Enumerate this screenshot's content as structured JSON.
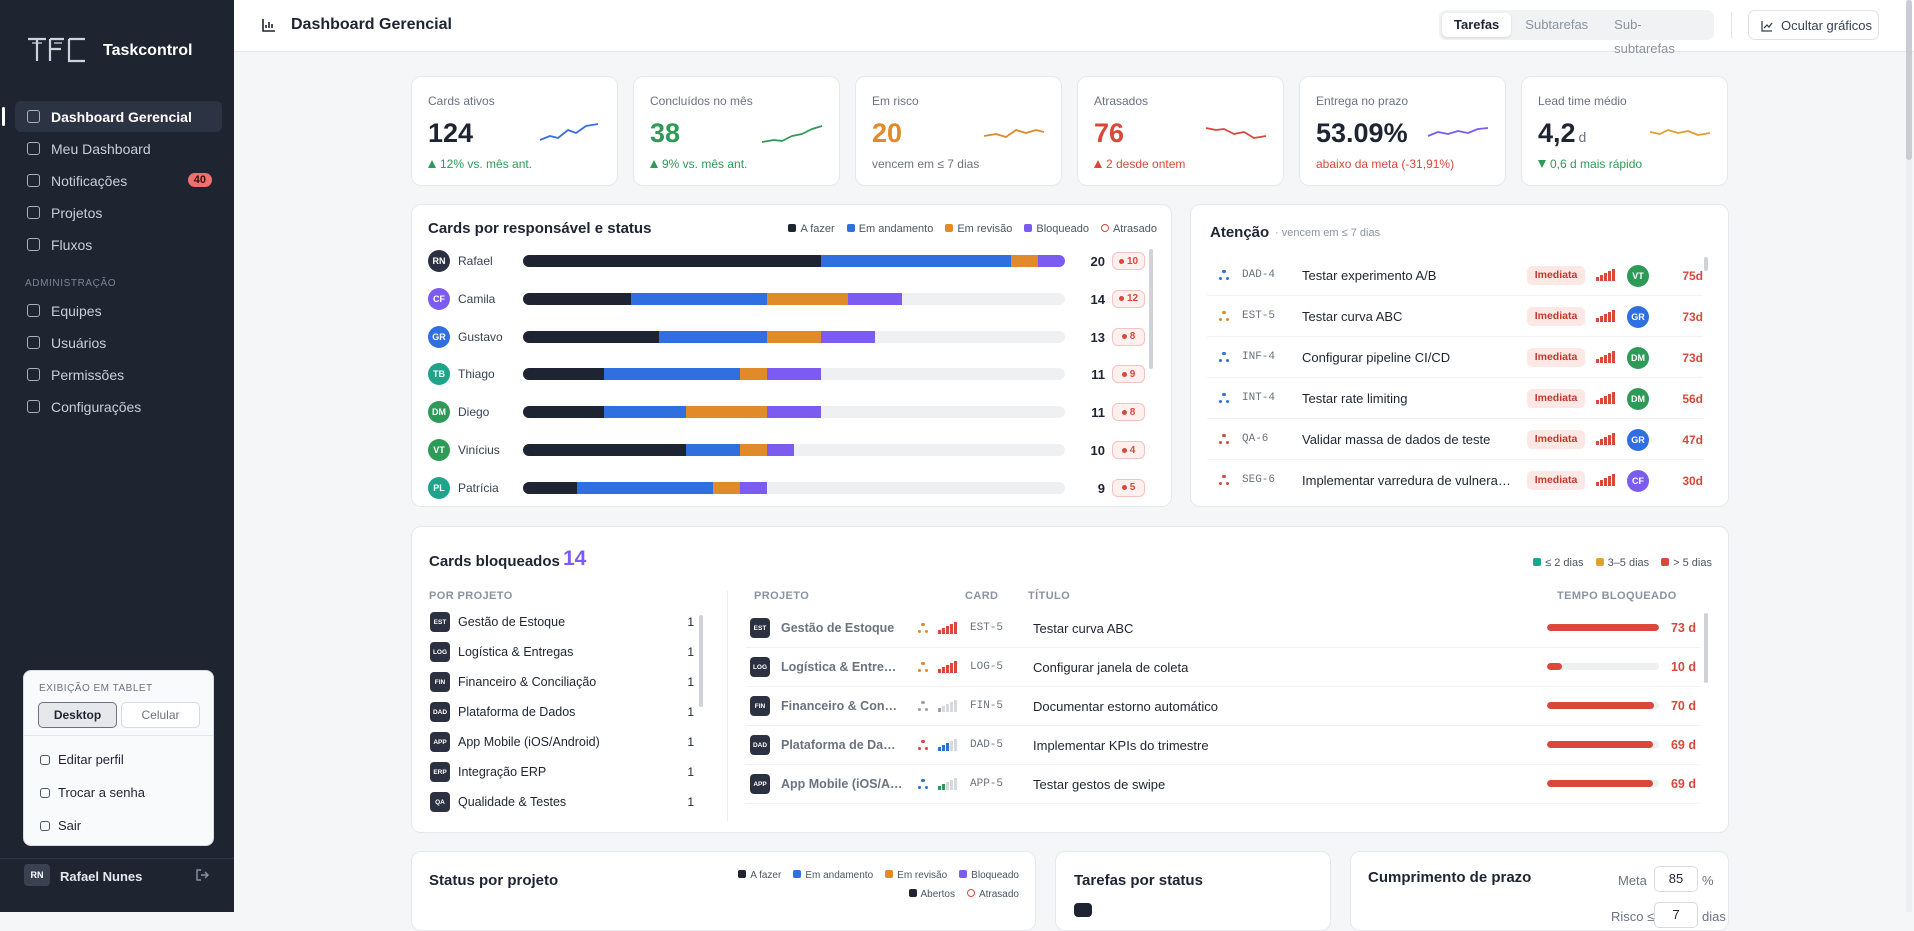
{
  "sidebar": {
    "brand": "Taskcontrol",
    "nav": [
      {
        "label": "Dashboard Gerencial",
        "active": true
      },
      {
        "label": "Meu Dashboard"
      },
      {
        "label": "Notificações",
        "badge": 40
      },
      {
        "label": "Projetos"
      },
      {
        "label": "Fluxos"
      }
    ],
    "admin_title": "ADMINISTRAÇÃO",
    "admin_nav": [
      {
        "label": "Equipes"
      },
      {
        "label": "Usuários"
      },
      {
        "label": "Permissões"
      },
      {
        "label": "Configurações"
      }
    ],
    "tablet": {
      "title": "EXIBIÇÃO EM TABLET",
      "options": [
        {
          "label": "Desktop",
          "active": true
        },
        {
          "label": "Celular"
        }
      ],
      "actions": [
        "Editar perfil",
        "Trocar a senha",
        "Sair"
      ]
    },
    "user": {
      "initials": "RN",
      "name": "Rafael Nunes"
    }
  },
  "header": {
    "title": "Dashboard Gerencial",
    "tabs": [
      {
        "label": "Tarefas",
        "active": true
      },
      {
        "label": "Subtarefas"
      },
      {
        "label": "Sub-subtarefas"
      }
    ],
    "button": "Ocultar gráficos"
  },
  "kpis": [
    {
      "label": "Cards ativos",
      "value": 124,
      "value_color": "#1f2433",
      "note": "12% vs. mês ant.",
      "trend": "up",
      "note_color": "#2e9a57",
      "spark_color": "#3a6fe0"
    },
    {
      "label": "Concluídos no mês",
      "value": 38,
      "value_color": "#2e9a57",
      "note": "9% vs. mês ant.",
      "trend": "up",
      "note_color": "#2e9a57",
      "spark_color": "#2e9a57"
    },
    {
      "label": "Em risco",
      "value": 20,
      "value_color": "#e08a2a",
      "note": "vencem em ≤ 7 dias",
      "note_color": "#6b7280",
      "spark_color": "#e08a2a"
    },
    {
      "label": "Atrasados",
      "value": 76,
      "value_color": "#d9483b",
      "note": "2 desde ontem",
      "trend": "up",
      "note_color": "#d9483b",
      "spark_color": "#d9483b"
    },
    {
      "label": "Entrega no prazo",
      "value": "53.09%",
      "value_color": "#1f2433",
      "note": "abaixo da meta (-31,91%)",
      "note_color": "#d9483b",
      "spark_color": "#7c5cf0"
    },
    {
      "label": "Lead time médio",
      "value": "4,2",
      "unit": "d",
      "value_color": "#1f2433",
      "note": "0,6 d mais rápido",
      "trend": "down",
      "note_color": "#2e9a57",
      "spark_color": "#e0a030"
    }
  ],
  "workload": {
    "title": "Cards por responsável e status",
    "legend": [
      {
        "label": "A fazer",
        "color": "#1f2433"
      },
      {
        "label": "Em andamento",
        "color": "#2f6fe0"
      },
      {
        "label": "Em revisão",
        "color": "#e08a2a"
      },
      {
        "label": "Bloqueado",
        "color": "#7c5cf0"
      },
      {
        "label": "Atrasado",
        "color": "#d9483b",
        "outline": true
      }
    ],
    "people": [
      {
        "initials": "RN",
        "name": "Rafael",
        "color": "#2b3140",
        "segments": [
          11,
          7,
          1,
          1
        ],
        "total": 20,
        "late": 10
      },
      {
        "initials": "CF",
        "name": "Camila",
        "color": "#7c5cf0",
        "segments": [
          4,
          5,
          3,
          2
        ],
        "total": 14,
        "late": 12
      },
      {
        "initials": "GR",
        "name": "Gustavo",
        "color": "#2f6fe0",
        "segments": [
          5,
          4,
          2,
          2
        ],
        "total": 13,
        "late": 8
      },
      {
        "initials": "TB",
        "name": "Thiago",
        "color": "#1fa38a",
        "segments": [
          3,
          5,
          1,
          2
        ],
        "total": 11,
        "late": 9
      },
      {
        "initials": "DM",
        "name": "Diego",
        "color": "#2e9a57",
        "segments": [
          3,
          3,
          3,
          2
        ],
        "total": 11,
        "late": 8
      },
      {
        "initials": "VT",
        "name": "Vinícius",
        "color": "#2e9a57",
        "segments": [
          6,
          2,
          1,
          1
        ],
        "total": 10,
        "late": 4
      },
      {
        "initials": "PL",
        "name": "Patrícia",
        "color": "#1fa38a",
        "segments": [
          2,
          5,
          1,
          1
        ],
        "total": 9,
        "late": 5
      }
    ]
  },
  "attention": {
    "title": "Atenção",
    "subtitle": "· vencem em ≤ 7 dias",
    "items": [
      {
        "code": "DAD-4",
        "title": "Testar experimento A/B",
        "priority": "Imediata",
        "level": 5,
        "icon_color": "#2f6fe0",
        "assignee": "VT",
        "assignee_color": "#2e9a57",
        "days": "75d"
      },
      {
        "code": "EST-5",
        "title": "Testar curva ABC",
        "priority": "Imediata",
        "level": 5,
        "icon_color": "#e08a2a",
        "assignee": "GR",
        "assignee_color": "#2f6fe0",
        "days": "73d"
      },
      {
        "code": "INF-4",
        "title": "Configurar pipeline CI/CD",
        "priority": "Imediata",
        "level": 5,
        "icon_color": "#2f6fe0",
        "assignee": "DM",
        "assignee_color": "#2e9a57",
        "days": "73d"
      },
      {
        "code": "INT-4",
        "title": "Testar rate limiting",
        "priority": "Imediata",
        "level": 5,
        "icon_color": "#2f6fe0",
        "assignee": "DM",
        "assignee_color": "#2e9a57",
        "days": "56d"
      },
      {
        "code": "QA-6",
        "title": "Validar massa de dados de teste",
        "priority": "Imediata",
        "level": 5,
        "icon_color": "#d9483b",
        "assignee": "GR",
        "assignee_color": "#2f6fe0",
        "days": "47d"
      },
      {
        "code": "SEG-6",
        "title": "Implementar varredura de vulnerabilidades",
        "priority": "Imediata",
        "level": 5,
        "icon_color": "#d9483b",
        "assignee": "CF",
        "assignee_color": "#7c5cf0",
        "days": "30d"
      }
    ]
  },
  "blocked": {
    "title": "Cards bloqueados",
    "count": 14,
    "legend": [
      {
        "label": "≤ 2 dias",
        "color": "#1fa38a"
      },
      {
        "label": "3–5 dias",
        "color": "#e0a030"
      },
      {
        "label": "> 5 dias",
        "color": "#d9483b"
      }
    ],
    "by_project_title": "POR PROJETO",
    "projects": [
      {
        "abbr": "EST",
        "name": "Gestão de Estoque",
        "count": 1
      },
      {
        "abbr": "LOG",
        "name": "Logística & Entregas",
        "count": 1
      },
      {
        "abbr": "FIN",
        "name": "Financeiro & Conciliação",
        "count": 1
      },
      {
        "abbr": "DAD",
        "name": "Plataforma de Dados",
        "count": 1
      },
      {
        "abbr": "APP",
        "name": "App Mobile (iOS/Android)",
        "count": 1
      },
      {
        "abbr": "ERP",
        "name": "Integração ERP",
        "count": 1
      },
      {
        "abbr": "QA",
        "name": "Qualidade & Testes",
        "count": 1
      }
    ],
    "columns": [
      "PROJETO",
      "CARD",
      "TÍTULO",
      "TEMPO BLOQUEADO"
    ],
    "rows": [
      {
        "abbr": "EST",
        "project": "Gestão de Estoque",
        "icon_color": "#e08a2a",
        "level": 5,
        "level_color": "#d9483b",
        "card": "EST-5",
        "title": "Testar curva ABC",
        "days": 73,
        "days_label": "73 d"
      },
      {
        "abbr": "LOG",
        "project": "Logística & Entregas",
        "icon_color": "#e08a2a",
        "level": 5,
        "level_color": "#d9483b",
        "card": "LOG-5",
        "title": "Configurar janela de coleta",
        "days": 10,
        "days_label": "10 d"
      },
      {
        "abbr": "FIN",
        "project": "Financeiro & Conciliação",
        "icon_color": "#9aa1ad",
        "level": 1,
        "level_color": "#9aa1ad",
        "card": "FIN-5",
        "title": "Documentar estorno automático",
        "days": 70,
        "days_label": "70 d"
      },
      {
        "abbr": "DAD",
        "project": "Plataforma de Dados",
        "icon_color": "#d9483b",
        "level": 3,
        "level_color": "#2f6fe0",
        "card": "DAD-5",
        "title": "Implementar KPIs do trimestre",
        "days": 69,
        "days_label": "69 d"
      },
      {
        "abbr": "APP",
        "project": "App Mobile (iOS/Android)",
        "icon_color": "#2f6fe0",
        "level": 2,
        "level_color": "#2e9a57",
        "card": "APP-5",
        "title": "Testar gestos de swipe",
        "days": 69,
        "days_label": "69 d"
      }
    ]
  },
  "bottom": {
    "status_title": "Status por projeto",
    "status_legend": [
      {
        "label": "A fazer",
        "color": "#1f2433"
      },
      {
        "label": "Em andamento",
        "color": "#2f6fe0"
      },
      {
        "label": "Em revisão",
        "color": "#e08a2a"
      },
      {
        "label": "Bloqueado",
        "color": "#7c5cf0"
      }
    ],
    "status_legend2": [
      {
        "label": "Abertos",
        "color": "#1f2433"
      },
      {
        "label": "Atrasado",
        "color": "#d9483b",
        "outline": true
      }
    ],
    "tasks_title": "Tarefas por status",
    "deadline_title": "Cumprimento de prazo",
    "meta_label": "Meta",
    "meta_value": 85,
    "meta_unit": "%",
    "risk_label": "Risco ≤",
    "risk_value": 7,
    "risk_unit": "dias"
  }
}
